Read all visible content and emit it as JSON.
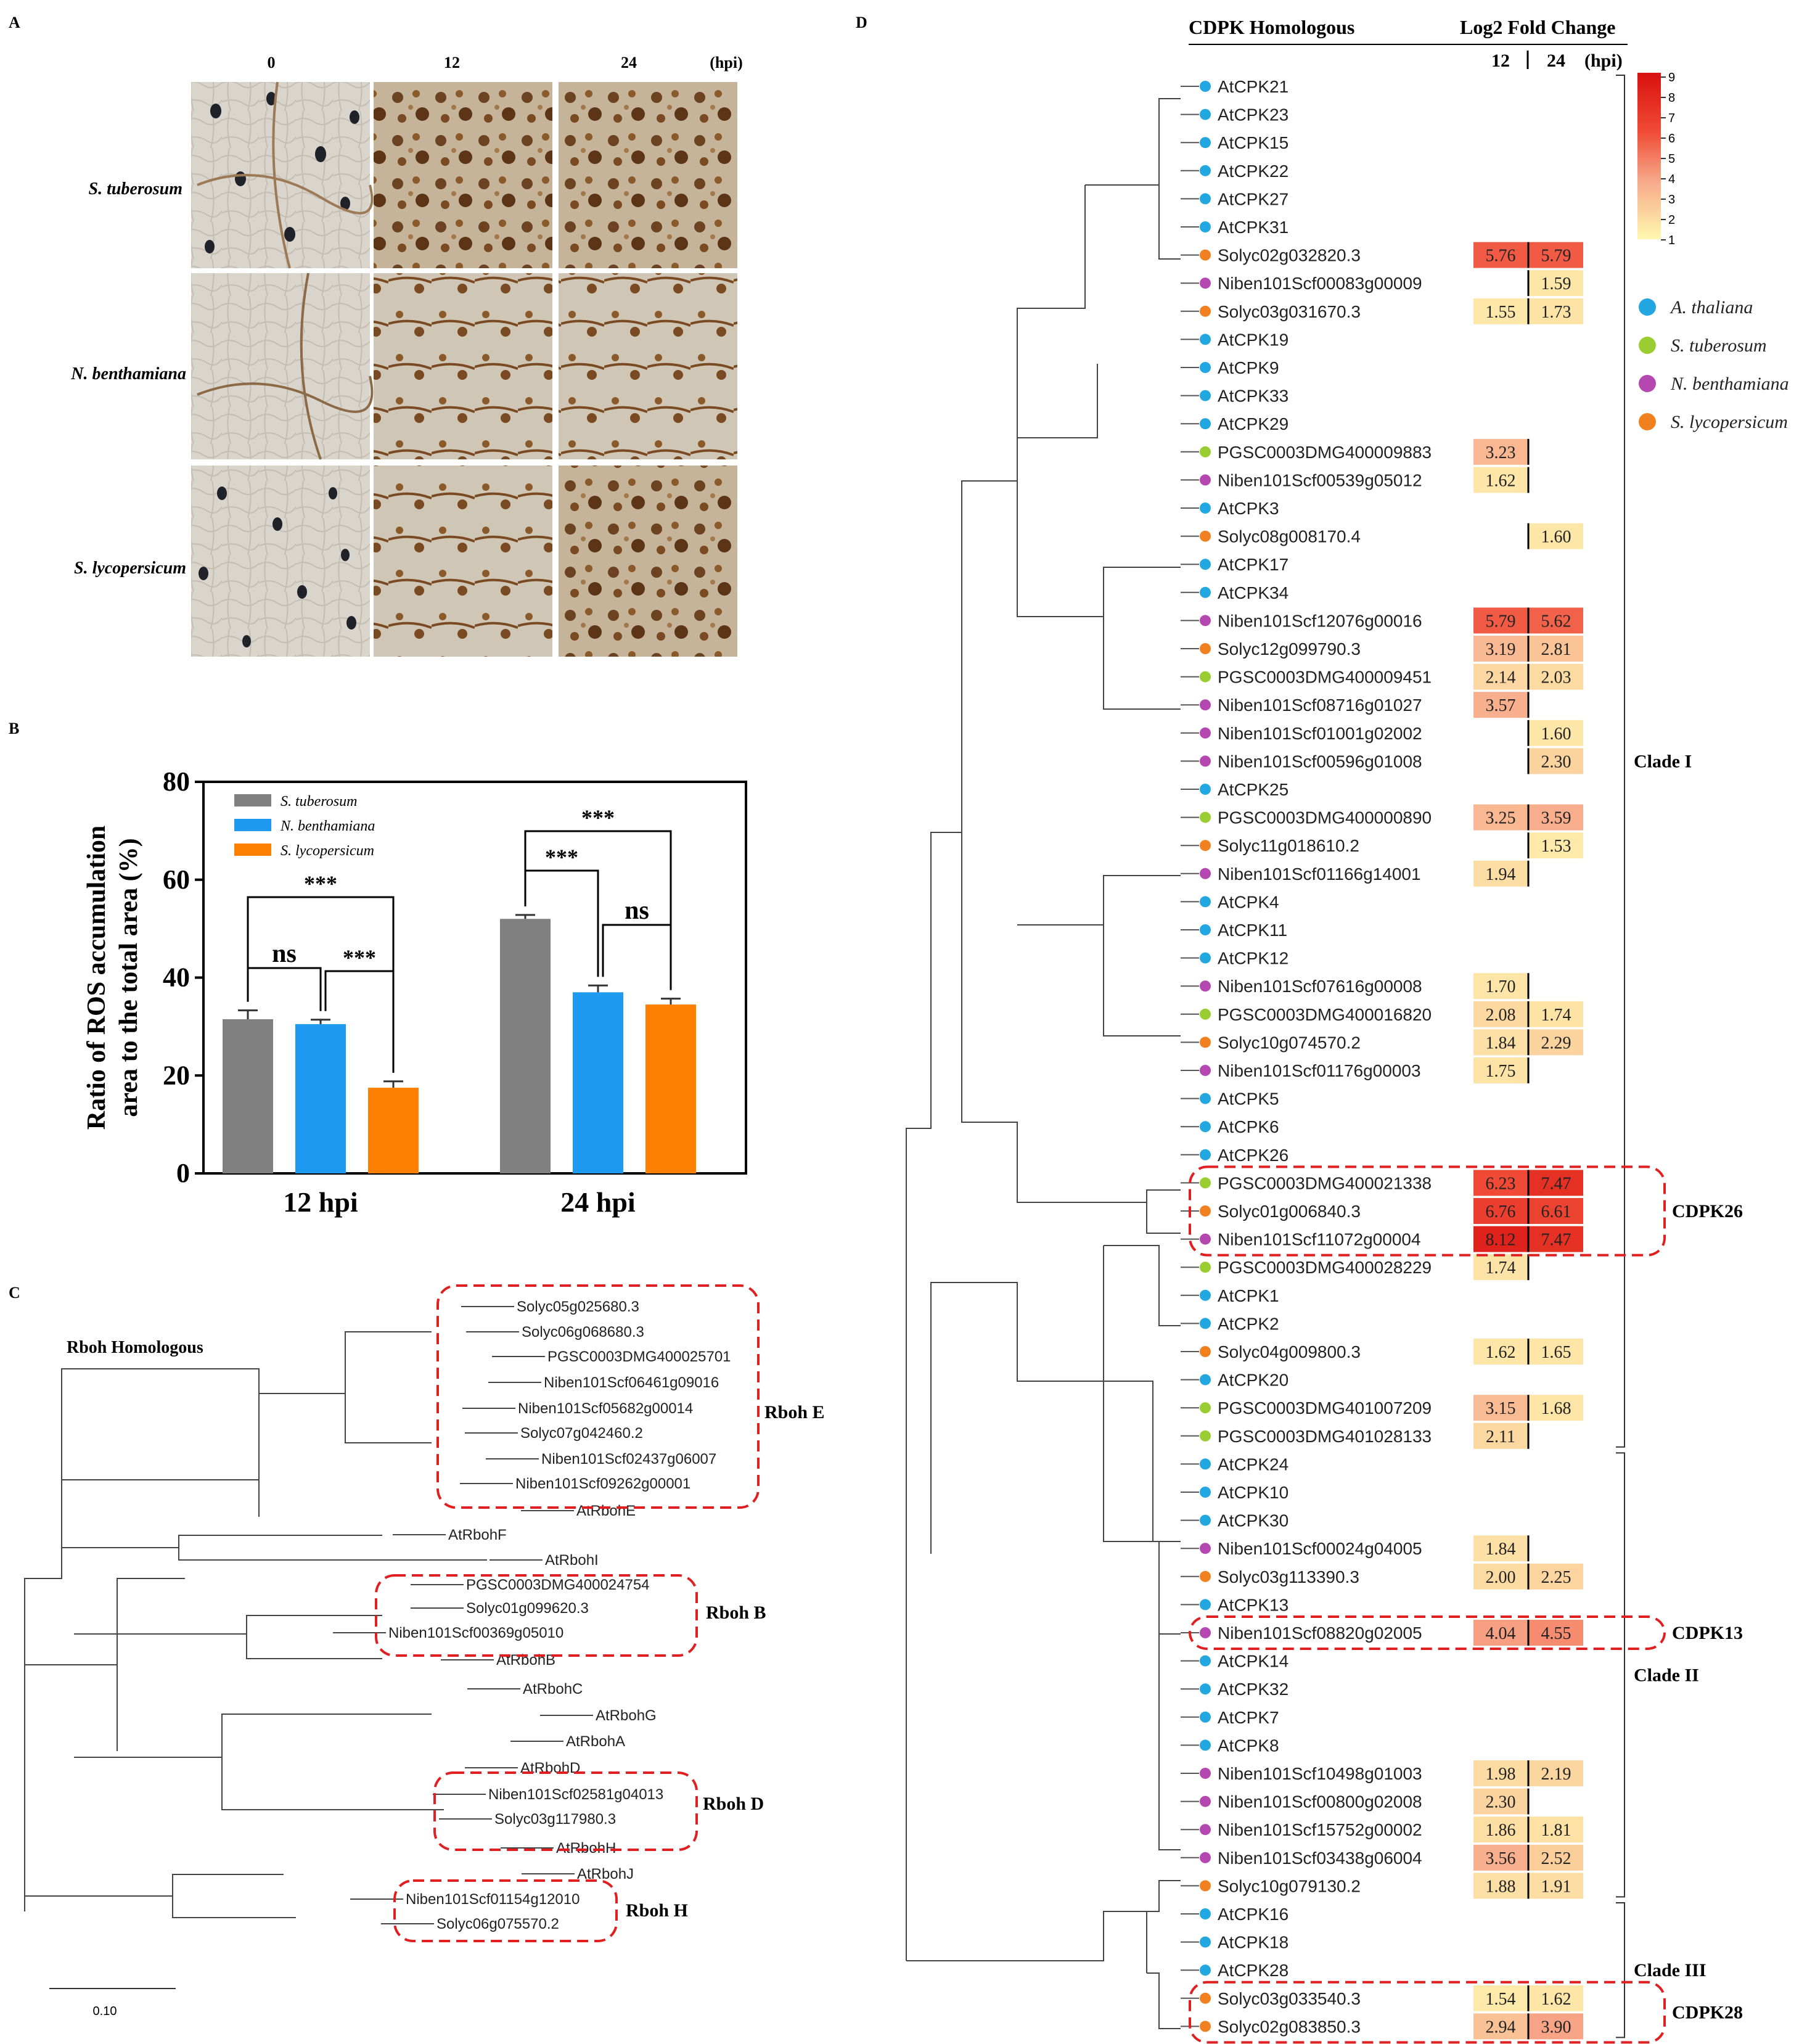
{
  "panels": {
    "A": {
      "letter": "A",
      "time_points": [
        "0",
        "12",
        "24"
      ],
      "unit_label": "(hpi)",
      "species_rows": [
        "S. tuberosum",
        "N. benthamiana",
        "S. lycopersicum"
      ]
    },
    "B": {
      "letter": "B"
    },
    "C": {
      "letter": "C"
    },
    "D": {
      "letter": "D"
    }
  },
  "chart_data": [
    {
      "type": "bar",
      "panel": "B",
      "title": "",
      "xlabel": "",
      "ylabel": "Ratio of ROS accumulation area to the total area  (%)",
      "ylabel_lines": [
        "Ratio of ROS accumulation",
        "area to the total area  (%)"
      ],
      "categories": [
        "12 hpi",
        "24 hpi"
      ],
      "ylim": [
        0,
        80
      ],
      "yticks": [
        0,
        20,
        40,
        60,
        80
      ],
      "series": [
        {
          "name": "S. tuberosum",
          "color": "#808080",
          "values": [
            31.5,
            52.0
          ],
          "errors": [
            1.8,
            0.8
          ]
        },
        {
          "name": "N. benthamiana",
          "color": "#1E9BF0",
          "values": [
            30.5,
            37.0
          ],
          "errors": [
            0.9,
            1.4
          ]
        },
        {
          "name": "S. lycopersicum",
          "color": "#FF8000",
          "values": [
            17.5,
            34.5
          ],
          "errors": [
            1.3,
            1.2
          ]
        }
      ],
      "significance": [
        {
          "group": 0,
          "from": 0,
          "to": 1,
          "label": "ns"
        },
        {
          "group": 0,
          "from": 1,
          "to": 2,
          "label": "***"
        },
        {
          "group": 0,
          "from": 0,
          "to": 2,
          "label": "***"
        },
        {
          "group": 1,
          "from": 0,
          "to": 1,
          "label": "***"
        },
        {
          "group": 1,
          "from": 1,
          "to": 2,
          "label": "ns"
        },
        {
          "group": 1,
          "from": 0,
          "to": 2,
          "label": "***"
        }
      ]
    },
    {
      "type": "tree",
      "panel": "C",
      "title": "Rboh Homologous",
      "scale_label": "0.10",
      "leaves": [
        "Solyc05g025680.3",
        "Solyc06g068680.3",
        "PGSC0003DMG400025701",
        "Niben101Scf06461g09016",
        "Niben101Scf05682g00014",
        "Solyc07g042460.2",
        "Niben101Scf02437g06007",
        "Niben101Scf09262g00001",
        "AtRbohE",
        "AtRbohF",
        "AtRbohI",
        "PGSC0003DMG400024754",
        "Solyc01g099620.3",
        "Niben101Scf00369g05010",
        "AtRbohB",
        "AtRbohC",
        "AtRbohG",
        "AtRbohA",
        "AtRbohD",
        "Niben101Scf02581g04013",
        "Solyc03g117980.3",
        "AtRbohH",
        "AtRbohJ",
        "Niben101Scf01154g12010",
        "Solyc06g075570.2"
      ],
      "groups": [
        "Rboh E",
        "Rboh B",
        "Rboh D",
        "Rboh H"
      ]
    },
    {
      "type": "heatmap",
      "panel": "D",
      "title": "CDPK Homologous",
      "value_title": "Log2 Fold Change",
      "columns": [
        "12",
        "24"
      ],
      "unit_label": "(hpi)",
      "colorbar": {
        "min": 1,
        "max": 9,
        "ticks": [
          "9",
          "8",
          "7",
          "6",
          "5",
          "4",
          "3",
          "2",
          "1"
        ]
      },
      "species_legend": [
        {
          "name": "A. thaliana",
          "color": "#22A7E0"
        },
        {
          "name": "S. tuberosum",
          "color": "#9ACD32"
        },
        {
          "name": "N. benthamiana",
          "color": "#B548B0"
        },
        {
          "name": "S. lycopersicum",
          "color": "#F08020"
        }
      ],
      "rows": [
        {
          "name": "AtCPK21",
          "sp": 0,
          "v12": null,
          "v24": null
        },
        {
          "name": "AtCPK23",
          "sp": 0,
          "v12": null,
          "v24": null
        },
        {
          "name": "AtCPK15",
          "sp": 0,
          "v12": null,
          "v24": null
        },
        {
          "name": "AtCPK22",
          "sp": 0,
          "v12": null,
          "v24": null
        },
        {
          "name": "AtCPK27",
          "sp": 0,
          "v12": null,
          "v24": null
        },
        {
          "name": "AtCPK31",
          "sp": 0,
          "v12": null,
          "v24": null
        },
        {
          "name": "Solyc02g032820.3",
          "sp": 3,
          "v12": "5.76",
          "v24": "5.79"
        },
        {
          "name": "Niben101Scf00083g00009",
          "sp": 2,
          "v12": null,
          "v24": "1.59"
        },
        {
          "name": "Solyc03g031670.3",
          "sp": 3,
          "v12": "1.55",
          "v24": "1.73"
        },
        {
          "name": "AtCPK19",
          "sp": 0,
          "v12": null,
          "v24": null
        },
        {
          "name": "AtCPK9",
          "sp": 0,
          "v12": null,
          "v24": null
        },
        {
          "name": "AtCPK33",
          "sp": 0,
          "v12": null,
          "v24": null
        },
        {
          "name": "AtCPK29",
          "sp": 0,
          "v12": null,
          "v24": null
        },
        {
          "name": "PGSC0003DMG400009883",
          "sp": 1,
          "v12": "3.23",
          "v24": null
        },
        {
          "name": "Niben101Scf00539g05012",
          "sp": 2,
          "v12": "1.62",
          "v24": null
        },
        {
          "name": "AtCPK3",
          "sp": 0,
          "v12": null,
          "v24": null
        },
        {
          "name": "Solyc08g008170.4",
          "sp": 3,
          "v12": null,
          "v24": "1.60"
        },
        {
          "name": "AtCPK17",
          "sp": 0,
          "v12": null,
          "v24": null
        },
        {
          "name": "AtCPK34",
          "sp": 0,
          "v12": null,
          "v24": null
        },
        {
          "name": "Niben101Scf12076g00016",
          "sp": 2,
          "v12": "5.79",
          "v24": "5.62"
        },
        {
          "name": "Solyc12g099790.3",
          "sp": 3,
          "v12": "3.19",
          "v24": "2.81"
        },
        {
          "name": "PGSC0003DMG400009451",
          "sp": 1,
          "v12": "2.14",
          "v24": "2.03"
        },
        {
          "name": "Niben101Scf08716g01027",
          "sp": 2,
          "v12": "3.57",
          "v24": null
        },
        {
          "name": "Niben101Scf01001g02002",
          "sp": 2,
          "v12": null,
          "v24": "1.60"
        },
        {
          "name": "Niben101Scf00596g01008",
          "sp": 2,
          "v12": null,
          "v24": "2.30"
        },
        {
          "name": "AtCPK25",
          "sp": 0,
          "v12": null,
          "v24": null
        },
        {
          "name": "PGSC0003DMG400000890",
          "sp": 1,
          "v12": "3.25",
          "v24": "3.59"
        },
        {
          "name": "Solyc11g018610.2",
          "sp": 3,
          "v12": null,
          "v24": "1.53"
        },
        {
          "name": "Niben101Scf01166g14001",
          "sp": 2,
          "v12": "1.94",
          "v24": null
        },
        {
          "name": "AtCPK4",
          "sp": 0,
          "v12": null,
          "v24": null
        },
        {
          "name": "AtCPK11",
          "sp": 0,
          "v12": null,
          "v24": null
        },
        {
          "name": "AtCPK12",
          "sp": 0,
          "v12": null,
          "v24": null
        },
        {
          "name": "Niben101Scf07616g00008",
          "sp": 2,
          "v12": "1.70",
          "v24": null
        },
        {
          "name": "PGSC0003DMG400016820",
          "sp": 1,
          "v12": "2.08",
          "v24": "1.74"
        },
        {
          "name": "Solyc10g074570.2",
          "sp": 3,
          "v12": "1.84",
          "v24": "2.29"
        },
        {
          "name": "Niben101Scf01176g00003",
          "sp": 2,
          "v12": "1.75",
          "v24": null
        },
        {
          "name": "AtCPK5",
          "sp": 0,
          "v12": null,
          "v24": null
        },
        {
          "name": "AtCPK6",
          "sp": 0,
          "v12": null,
          "v24": null
        },
        {
          "name": "AtCPK26",
          "sp": 0,
          "v12": null,
          "v24": null
        },
        {
          "name": "PGSC0003DMG400021338",
          "sp": 1,
          "v12": "6.23",
          "v24": "7.47"
        },
        {
          "name": "Solyc01g006840.3",
          "sp": 3,
          "v12": "6.76",
          "v24": "6.61"
        },
        {
          "name": "Niben101Scf11072g00004",
          "sp": 2,
          "v12": "8.12",
          "v24": "7.47"
        },
        {
          "name": "PGSC0003DMG400028229",
          "sp": 1,
          "v12": "1.74",
          "v24": null
        },
        {
          "name": "AtCPK1",
          "sp": 0,
          "v12": null,
          "v24": null
        },
        {
          "name": "AtCPK2",
          "sp": 0,
          "v12": null,
          "v24": null
        },
        {
          "name": "Solyc04g009800.3",
          "sp": 3,
          "v12": "1.62",
          "v24": "1.65"
        },
        {
          "name": "AtCPK20",
          "sp": 0,
          "v12": null,
          "v24": null
        },
        {
          "name": "PGSC0003DMG401007209",
          "sp": 1,
          "v12": "3.15",
          "v24": "1.68"
        },
        {
          "name": "PGSC0003DMG401028133",
          "sp": 1,
          "v12": "2.11",
          "v24": null
        },
        {
          "name": "AtCPK24",
          "sp": 0,
          "v12": null,
          "v24": null
        },
        {
          "name": "AtCPK10",
          "sp": 0,
          "v12": null,
          "v24": null
        },
        {
          "name": "AtCPK30",
          "sp": 0,
          "v12": null,
          "v24": null
        },
        {
          "name": "Niben101Scf00024g04005",
          "sp": 2,
          "v12": "1.84",
          "v24": null
        },
        {
          "name": "Solyc03g113390.3",
          "sp": 3,
          "v12": "2.00",
          "v24": "2.25"
        },
        {
          "name": "AtCPK13",
          "sp": 0,
          "v12": null,
          "v24": null
        },
        {
          "name": "Niben101Scf08820g02005",
          "sp": 2,
          "v12": "4.04",
          "v24": "4.55"
        },
        {
          "name": "AtCPK14",
          "sp": 0,
          "v12": null,
          "v24": null
        },
        {
          "name": "AtCPK32",
          "sp": 0,
          "v12": null,
          "v24": null
        },
        {
          "name": "AtCPK7",
          "sp": 0,
          "v12": null,
          "v24": null
        },
        {
          "name": "AtCPK8",
          "sp": 0,
          "v12": null,
          "v24": null
        },
        {
          "name": "Niben101Scf10498g01003",
          "sp": 2,
          "v12": "1.98",
          "v24": "2.19"
        },
        {
          "name": "Niben101Scf00800g02008",
          "sp": 2,
          "v12": "2.30",
          "v24": null
        },
        {
          "name": "Niben101Scf15752g00002",
          "sp": 2,
          "v12": "1.86",
          "v24": "1.81"
        },
        {
          "name": "Niben101Scf03438g06004",
          "sp": 2,
          "v12": "3.56",
          "v24": "2.52"
        },
        {
          "name": "Solyc10g079130.2",
          "sp": 3,
          "v12": "1.88",
          "v24": "1.91"
        },
        {
          "name": "AtCPK16",
          "sp": 0,
          "v12": null,
          "v24": null
        },
        {
          "name": "AtCPK18",
          "sp": 0,
          "v12": null,
          "v24": null
        },
        {
          "name": "AtCPK28",
          "sp": 0,
          "v12": null,
          "v24": null
        },
        {
          "name": "Solyc03g033540.3",
          "sp": 3,
          "v12": "1.54",
          "v24": "1.62"
        },
        {
          "name": "Solyc02g083850.3",
          "sp": 3,
          "v12": "2.94",
          "v24": "3.90"
        }
      ],
      "clades": [
        {
          "label": "Clade I",
          "first": 0,
          "last": 48
        },
        {
          "label": "Clade II",
          "first": 49,
          "last": 64
        },
        {
          "label": "Clade III",
          "first": 65,
          "last": 69
        }
      ],
      "highlight_groups": [
        {
          "label": "CDPK26",
          "first": 39,
          "last": 41
        },
        {
          "label": "CDPK13",
          "first": 55,
          "last": 55
        },
        {
          "label": "CDPK28",
          "first": 68,
          "last": 69
        }
      ]
    }
  ]
}
